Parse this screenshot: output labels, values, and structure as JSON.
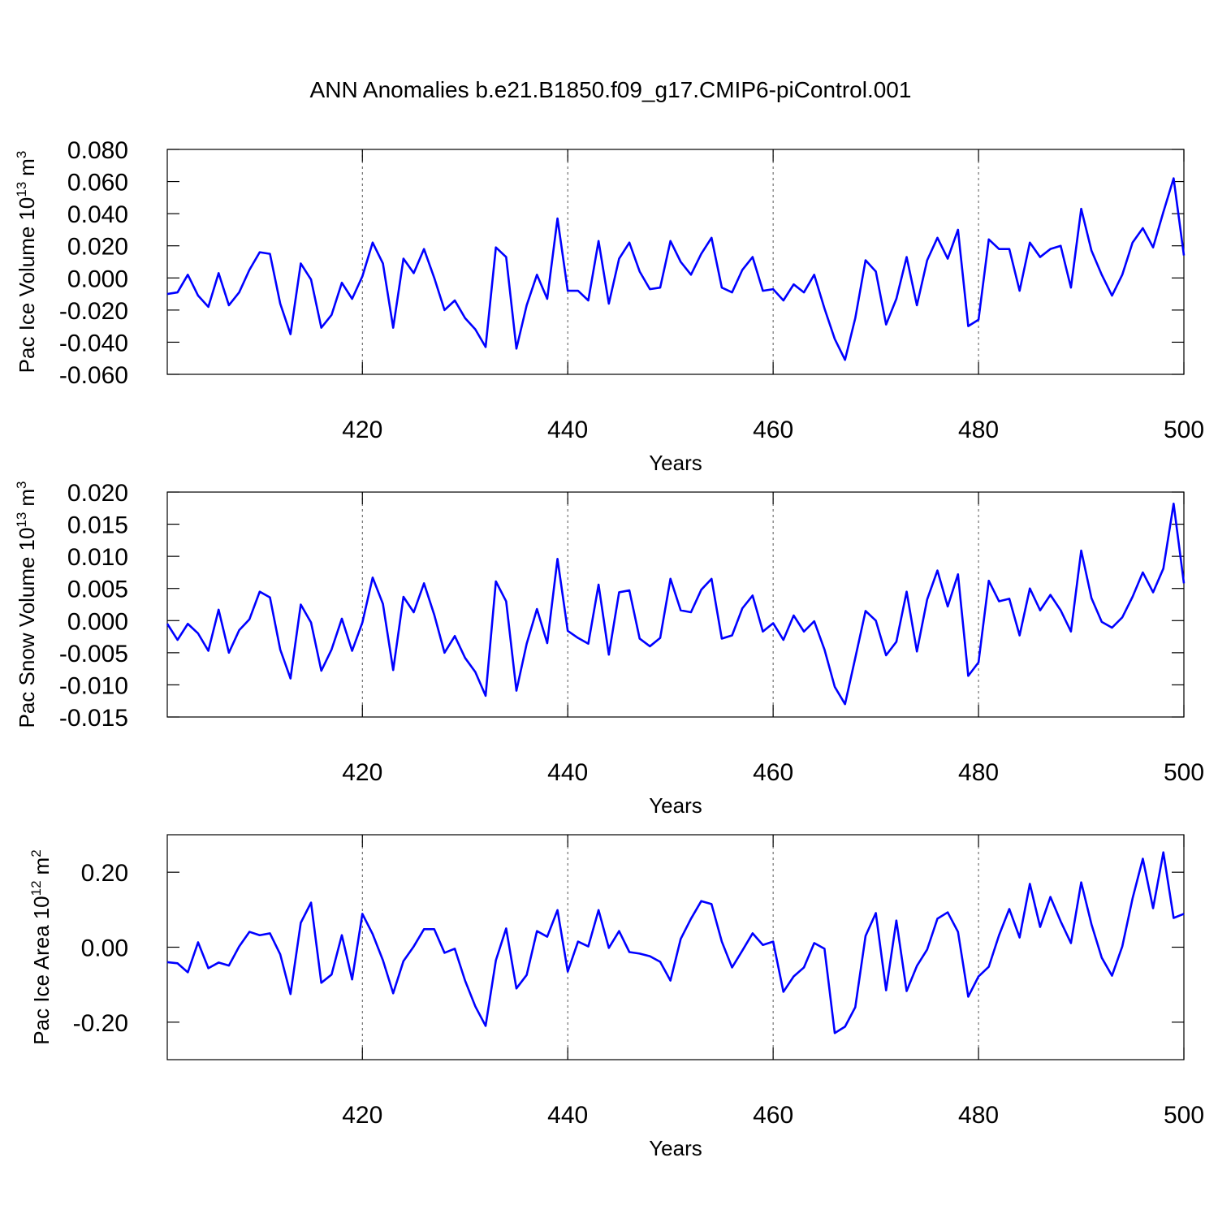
{
  "chart_data": [
    {
      "type": "line",
      "title": "ANN Anomalies b.e21.B1850.f09_g17.CMIP6-piControl.001",
      "xlabel": "Years",
      "ylabel": {
        "text": "Pac Ice Volume",
        "power": "10",
        "exponent": "13",
        "unit": "m",
        "unit_exponent": "3"
      },
      "color": "#0000ff",
      "grid": "x",
      "xlim": [
        401,
        500
      ],
      "xticks": [
        420,
        440,
        460,
        480,
        500
      ],
      "ylim": [
        -0.06,
        0.08
      ],
      "yticks": [
        {
          "value": -0.06,
          "label": "-0.060"
        },
        {
          "value": -0.04,
          "label": "-0.040"
        },
        {
          "value": -0.02,
          "label": "-0.020"
        },
        {
          "value": 0,
          "label": "0.000"
        },
        {
          "value": 0.02,
          "label": "0.020"
        },
        {
          "value": 0.04,
          "label": "0.040"
        },
        {
          "value": 0.06,
          "label": "0.060"
        },
        {
          "value": 0.08,
          "label": "0.080"
        }
      ],
      "x": [
        401,
        402,
        403,
        404,
        405,
        406,
        407,
        408,
        409,
        410,
        411,
        412,
        413,
        414,
        415,
        416,
        417,
        418,
        419,
        420,
        421,
        422,
        423,
        424,
        425,
        426,
        427,
        428,
        429,
        430,
        431,
        432,
        433,
        434,
        435,
        436,
        437,
        438,
        439,
        440,
        441,
        442,
        443,
        444,
        445,
        446,
        447,
        448,
        449,
        450,
        451,
        452,
        453,
        454,
        455,
        456,
        457,
        458,
        459,
        460,
        461,
        462,
        463,
        464,
        465,
        466,
        467,
        468,
        469,
        470,
        471,
        472,
        473,
        474,
        475,
        476,
        477,
        478,
        479,
        480,
        481,
        482,
        483,
        484,
        485,
        486,
        487,
        488,
        489,
        490,
        491,
        492,
        493,
        494,
        495,
        496,
        497,
        498,
        499,
        500
      ],
      "values": [
        -0.01,
        -0.009,
        0.002,
        -0.011,
        -0.018,
        0.003,
        -0.017,
        -0.009,
        0.005,
        0.016,
        0.015,
        -0.016,
        -0.035,
        0.009,
        -0.001,
        -0.031,
        -0.023,
        -0.003,
        -0.013,
        0.001,
        0.022,
        0.009,
        -0.031,
        0.012,
        0.003,
        0.018,
        0.0,
        -0.02,
        -0.014,
        -0.025,
        -0.032,
        -0.043,
        0.019,
        0.013,
        -0.044,
        -0.017,
        0.002,
        -0.013,
        0.037,
        -0.008,
        -0.008,
        -0.014,
        0.023,
        -0.016,
        0.012,
        0.022,
        0.004,
        -0.007,
        -0.006,
        0.023,
        0.01,
        0.002,
        0.015,
        0.025,
        -0.006,
        -0.009,
        0.005,
        0.013,
        -0.008,
        -0.007,
        -0.014,
        -0.004,
        -0.009,
        0.002,
        -0.019,
        -0.038,
        -0.051,
        -0.025,
        0.011,
        0.004,
        -0.029,
        -0.013,
        0.013,
        -0.017,
        0.011,
        0.025,
        0.012,
        0.03,
        -0.03,
        -0.026,
        0.024,
        0.018,
        0.018,
        -0.008,
        0.022,
        0.013,
        0.018,
        0.02,
        -0.006,
        0.043,
        0.017,
        0.002,
        -0.011,
        0.002,
        0.022,
        0.031,
        0.019,
        0.041,
        0.062,
        0.014
      ]
    },
    {
      "type": "line",
      "xlabel": "Years",
      "ylabel": {
        "text": "Pac Snow Volume",
        "power": "10",
        "exponent": "13",
        "unit": "m",
        "unit_exponent": "3"
      },
      "color": "#0000ff",
      "grid": "x",
      "xlim": [
        401,
        500
      ],
      "xticks": [
        420,
        440,
        460,
        480,
        500
      ],
      "ylim": [
        -0.015,
        0.02
      ],
      "yticks": [
        {
          "value": -0.015,
          "label": "-0.015"
        },
        {
          "value": -0.01,
          "label": "-0.010"
        },
        {
          "value": -0.005,
          "label": "-0.005"
        },
        {
          "value": 0,
          "label": "0.000"
        },
        {
          "value": 0.005,
          "label": "0.005"
        },
        {
          "value": 0.01,
          "label": "0.010"
        },
        {
          "value": 0.015,
          "label": "0.015"
        },
        {
          "value": 0.02,
          "label": "0.020"
        }
      ],
      "x": [
        401,
        402,
        403,
        404,
        405,
        406,
        407,
        408,
        409,
        410,
        411,
        412,
        413,
        414,
        415,
        416,
        417,
        418,
        419,
        420,
        421,
        422,
        423,
        424,
        425,
        426,
        427,
        428,
        429,
        430,
        431,
        432,
        433,
        434,
        435,
        436,
        437,
        438,
        439,
        440,
        441,
        442,
        443,
        444,
        445,
        446,
        447,
        448,
        449,
        450,
        451,
        452,
        453,
        454,
        455,
        456,
        457,
        458,
        459,
        460,
        461,
        462,
        463,
        464,
        465,
        466,
        467,
        468,
        469,
        470,
        471,
        472,
        473,
        474,
        475,
        476,
        477,
        478,
        479,
        480,
        481,
        482,
        483,
        484,
        485,
        486,
        487,
        488,
        489,
        490,
        491,
        492,
        493,
        494,
        495,
        496,
        497,
        498,
        499,
        500
      ],
      "values": [
        -0.0005,
        -0.003,
        -0.0005,
        -0.002,
        -0.0047,
        0.0017,
        -0.005,
        -0.0015,
        0.0002,
        0.0045,
        0.0036,
        -0.0045,
        -0.009,
        0.0025,
        -0.0003,
        -0.0078,
        -0.0045,
        0.0003,
        -0.0047,
        -0.0003,
        0.0067,
        0.0026,
        -0.0077,
        0.0037,
        0.0013,
        0.0058,
        0.0009,
        -0.005,
        -0.0024,
        -0.0058,
        -0.008,
        -0.0117,
        0.0061,
        0.003,
        -0.0109,
        -0.0036,
        0.0018,
        -0.0035,
        0.0096,
        -0.0016,
        -0.0027,
        -0.0036,
        0.0056,
        -0.0053,
        0.0044,
        0.0047,
        -0.0028,
        -0.004,
        -0.0027,
        0.0065,
        0.0016,
        0.0013,
        0.0048,
        0.0065,
        -0.0028,
        -0.0023,
        0.0019,
        0.0039,
        -0.0017,
        -0.0004,
        -0.003,
        0.0008,
        -0.0017,
        -0.0001,
        -0.0045,
        -0.0103,
        -0.013,
        -0.0058,
        0.0015,
        0.0,
        -0.0054,
        -0.0033,
        0.0045,
        -0.0048,
        0.0033,
        0.0078,
        0.0022,
        0.0072,
        -0.0086,
        -0.0065,
        0.0062,
        0.003,
        0.0034,
        -0.0023,
        0.005,
        0.0016,
        0.004,
        0.0016,
        -0.0017,
        0.0109,
        0.0035,
        -0.0002,
        -0.0011,
        0.0005,
        0.0037,
        0.0075,
        0.0044,
        0.0081,
        0.0182,
        0.0058
      ]
    },
    {
      "type": "line",
      "xlabel": "Years",
      "ylabel": {
        "text": "Pac Ice Area",
        "power": "10",
        "exponent": "12",
        "unit": "m",
        "unit_exponent": "2"
      },
      "color": "#0000ff",
      "grid": "x",
      "xlim": [
        401,
        500
      ],
      "xticks": [
        420,
        440,
        460,
        480,
        500
      ],
      "ylim": [
        -0.3,
        0.3
      ],
      "yticks": [
        {
          "value": -0.2,
          "label": "-0.20"
        },
        {
          "value": 0,
          "label": "0.00"
        },
        {
          "value": 0.2,
          "label": "0.20"
        }
      ],
      "x": [
        401,
        402,
        403,
        404,
        405,
        406,
        407,
        408,
        409,
        410,
        411,
        412,
        413,
        414,
        415,
        416,
        417,
        418,
        419,
        420,
        421,
        422,
        423,
        424,
        425,
        426,
        427,
        428,
        429,
        430,
        431,
        432,
        433,
        434,
        435,
        436,
        437,
        438,
        439,
        440,
        441,
        442,
        443,
        444,
        445,
        446,
        447,
        448,
        449,
        450,
        451,
        452,
        453,
        454,
        455,
        456,
        457,
        458,
        459,
        460,
        461,
        462,
        463,
        464,
        465,
        466,
        467,
        468,
        469,
        470,
        471,
        472,
        473,
        474,
        475,
        476,
        477,
        478,
        479,
        480,
        481,
        482,
        483,
        484,
        485,
        486,
        487,
        488,
        489,
        490,
        491,
        492,
        493,
        494,
        495,
        496,
        497,
        498,
        499,
        500
      ],
      "values": [
        -0.04,
        -0.043,
        -0.067,
        0.013,
        -0.056,
        -0.041,
        -0.049,
        0.002,
        0.041,
        0.032,
        0.037,
        -0.019,
        -0.125,
        0.065,
        0.119,
        -0.095,
        -0.073,
        0.032,
        -0.086,
        0.089,
        0.035,
        -0.035,
        -0.123,
        -0.037,
        0.002,
        0.048,
        0.048,
        -0.015,
        -0.004,
        -0.089,
        -0.158,
        -0.21,
        -0.035,
        0.05,
        -0.11,
        -0.074,
        0.043,
        0.028,
        0.099,
        -0.065,
        0.015,
        0.002,
        0.099,
        -0.002,
        0.043,
        -0.013,
        -0.017,
        -0.024,
        -0.039,
        -0.089,
        0.022,
        0.076,
        0.123,
        0.115,
        0.015,
        -0.054,
        -0.009,
        0.037,
        0.006,
        0.015,
        -0.119,
        -0.078,
        -0.054,
        0.011,
        -0.004,
        -0.229,
        -0.212,
        -0.16,
        0.03,
        0.091,
        -0.115,
        0.071,
        -0.117,
        -0.05,
        -0.006,
        0.076,
        0.093,
        0.041,
        -0.132,
        -0.078,
        -0.052,
        0.032,
        0.102,
        0.026,
        0.169,
        0.054,
        0.134,
        0.069,
        0.011,
        0.173,
        0.061,
        -0.028,
        -0.076,
        0.002,
        0.13,
        0.236,
        0.104,
        0.253,
        0.078,
        0.089
      ]
    }
  ]
}
